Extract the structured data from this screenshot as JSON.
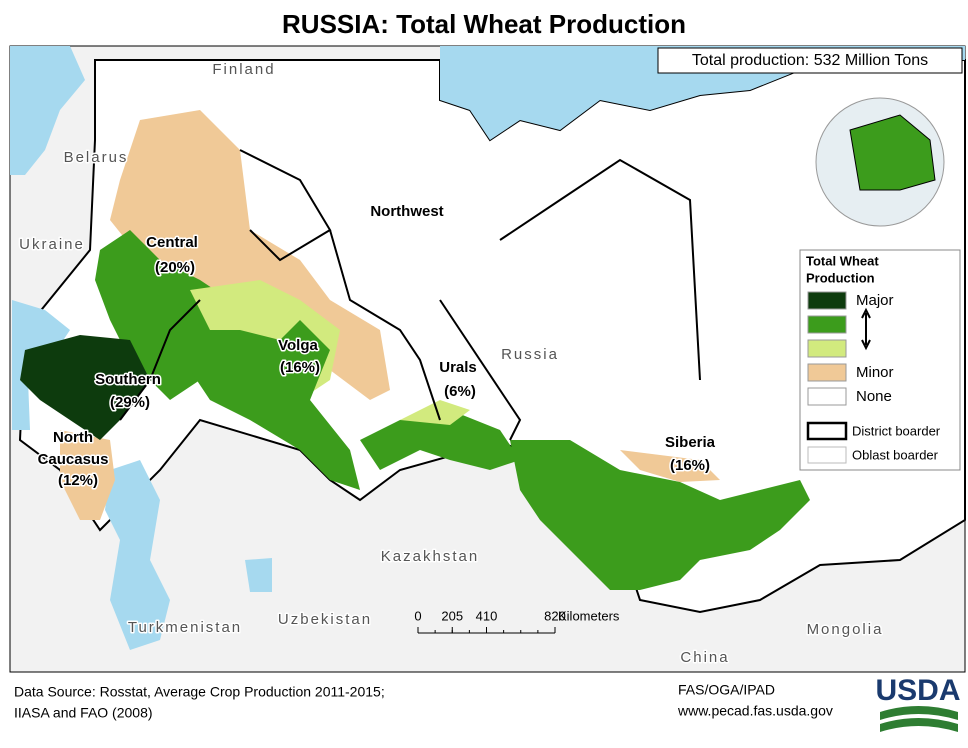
{
  "title": "RUSSIA: Total Wheat Production",
  "total_production": "Total production: 532 Million Tons",
  "countries": [
    "Finland",
    "Belarus",
    "Ukraine",
    "Kazakhstan",
    "Uzbekistan",
    "Turkmenistan",
    "Mongolia",
    "China",
    "Russia"
  ],
  "districts": [
    {
      "name": [
        "Northwest"
      ]
    },
    {
      "name": [
        "Central"
      ],
      "share": "(20%)"
    },
    {
      "name": [
        "Volga"
      ],
      "share": "(16%)"
    },
    {
      "name": [
        "Southern"
      ],
      "share": "(29%)"
    },
    {
      "name": [
        "North",
        "Caucasus"
      ],
      "share": "(12%)"
    },
    {
      "name": [
        "Urals"
      ],
      "share": "(6%)"
    },
    {
      "name": [
        "Siberia"
      ],
      "share": "(16%)"
    }
  ],
  "legend": {
    "title": [
      "Total Wheat",
      "Production"
    ],
    "classes": [
      {
        "label": "Major",
        "color": "#0d3b0d"
      },
      {
        "color": "#3c9c1c"
      },
      {
        "color": "#d2ea7e"
      },
      {
        "label": "Minor",
        "color": "#f0c997"
      },
      {
        "label": "None",
        "color": "#ffffff"
      }
    ],
    "boundaries": [
      "District boarder",
      "Oblast boarder"
    ]
  },
  "scale": {
    "ticks": [
      0,
      205,
      410,
      820
    ],
    "unit": "Kilometers"
  },
  "footer": {
    "source": [
      "Data Source: Rosstat, Average Crop Production 2011-2015;",
      "IIASA and FAO (2008)"
    ],
    "agency": [
      "FAS/OGA/IPAD",
      "www.pecad.fas.usda.gov"
    ],
    "logo": "USDA"
  }
}
